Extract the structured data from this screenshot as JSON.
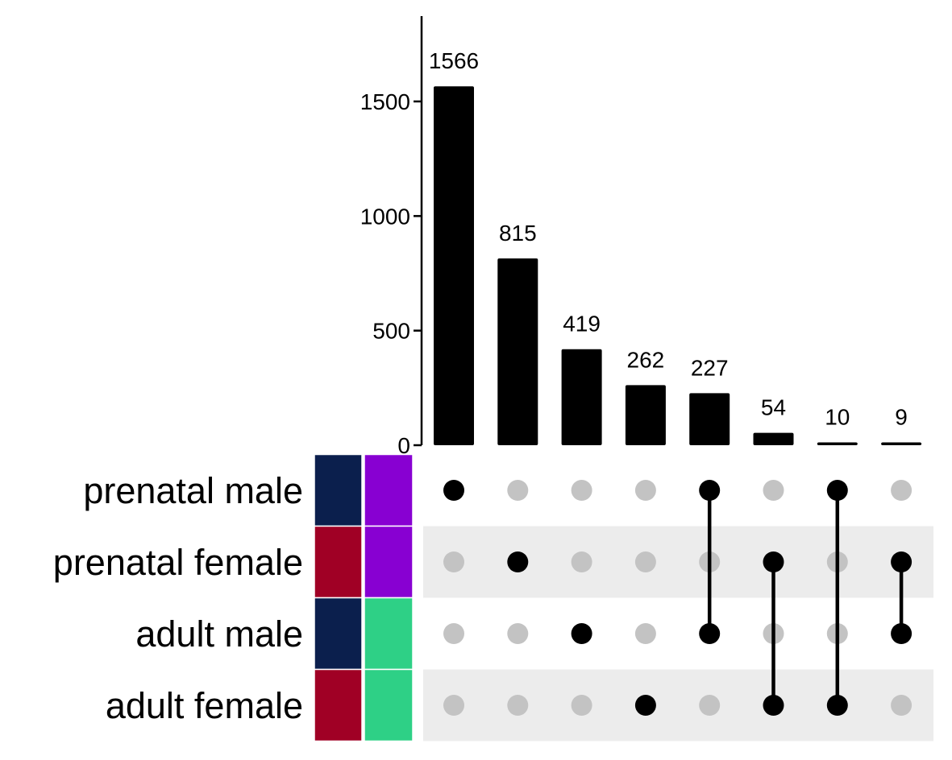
{
  "chart_data": {
    "type": "bar",
    "chart_kind": "upset",
    "y_axis": {
      "ylim": [
        0,
        1880
      ],
      "ticks": [
        0,
        500,
        1000,
        1500
      ],
      "tick_labels": [
        "0",
        "500",
        "1000",
        "1500"
      ]
    },
    "sets": [
      "prenatal male",
      "prenatal female",
      "adult male",
      "adult female"
    ],
    "set_annotations": {
      "column1": [
        "#0b1f4d",
        "#a00025",
        "#0b1f4d",
        "#a00025"
      ],
      "column2": [
        "#8800d2",
        "#8800d2",
        "#2ed086",
        "#2ed086"
      ]
    },
    "intersections": [
      {
        "members": [
          "prenatal male"
        ],
        "value": 1566,
        "label": "1566"
      },
      {
        "members": [
          "prenatal female"
        ],
        "value": 815,
        "label": "815"
      },
      {
        "members": [
          "adult male"
        ],
        "value": 419,
        "label": "419"
      },
      {
        "members": [
          "adult female"
        ],
        "value": 262,
        "label": "262"
      },
      {
        "members": [
          "prenatal male",
          "adult male"
        ],
        "value": 227,
        "label": "227"
      },
      {
        "members": [
          "prenatal female",
          "adult female"
        ],
        "value": 54,
        "label": "54"
      },
      {
        "members": [
          "prenatal male",
          "adult female"
        ],
        "value": 10,
        "label": "10"
      },
      {
        "members": [
          "prenatal female",
          "adult male"
        ],
        "value": 9,
        "label": "9"
      }
    ],
    "colors": {
      "bar": "#000000",
      "dot_active": "#000000",
      "dot_inactive": "#c3c3c3",
      "row_stripe": "#ececec"
    }
  }
}
